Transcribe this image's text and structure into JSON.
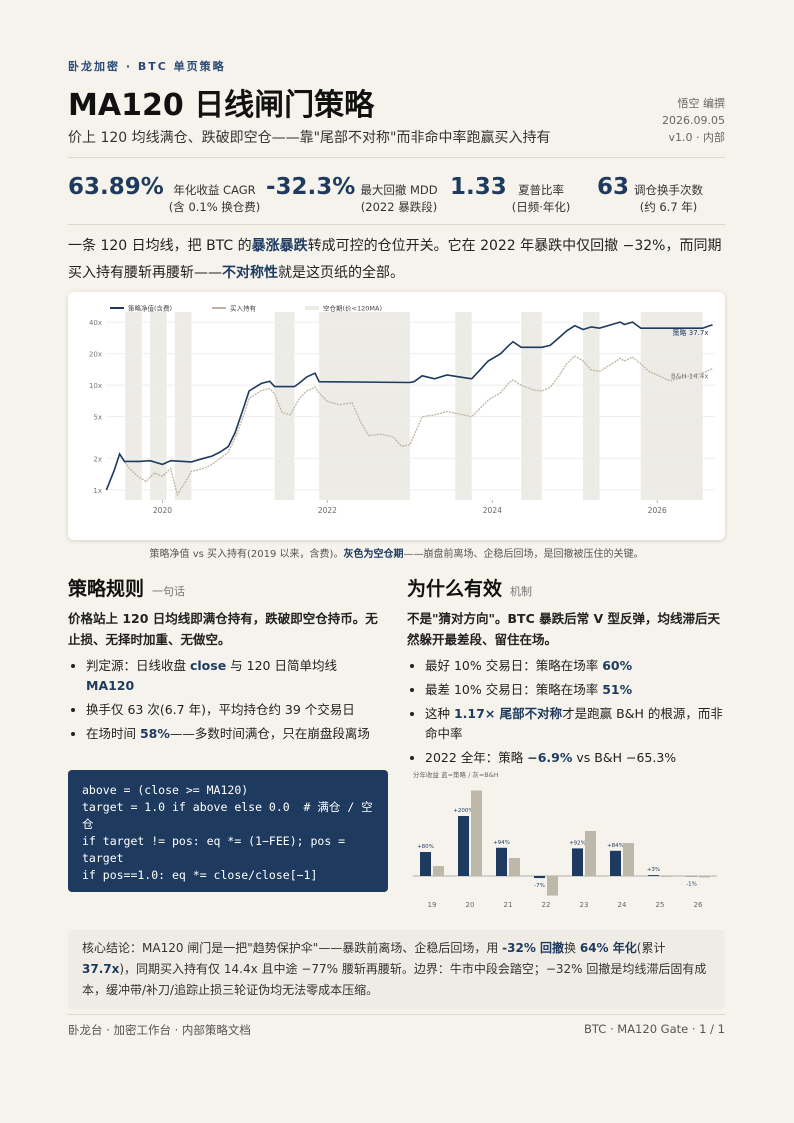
{
  "header": {
    "kicker": "卧龙加密 · BTC 单页策略",
    "title": "MA120 日线闸门策略",
    "subtitle": "价上 120 均线满仓、跌破即空仓——靠\"尾部不对称\"而非命中率跑赢买入持有",
    "author": "悟空 编撰",
    "date": "2026.09.05",
    "version": "v1.0 · 内部"
  },
  "kpis": [
    {
      "value": "63.89%",
      "label": "年化收益 CAGR",
      "note": "(含 0.1% 换仓费)"
    },
    {
      "value": "-32.3%",
      "label": "最大回撤 MDD",
      "note": "(2022 暴跌段)"
    },
    {
      "value": "1.33",
      "label": "夏普比率",
      "note": "(日频·年化)"
    },
    {
      "value": "63",
      "label": "调仓换手次数",
      "note": "(约 6.7 年)"
    }
  ],
  "intro": [
    "一条 120 日均线，把 BTC 的",
    "暴涨暴跌",
    "转成可控的仓位开关。它在 2022 年暴跌中仅回撤 −32%，而同期买入持有腰斩再腰斩——",
    "不对称性",
    "就是这页纸的全部。"
  ],
  "main_chart": {
    "type": "line",
    "log_scale": true,
    "grid": true,
    "xlim": [
      2019.0,
      2026.7
    ],
    "xticks": [
      2020,
      2022,
      2024,
      2026
    ],
    "ylim": [
      0.8,
      50
    ],
    "yticks": [
      {
        "value": 1,
        "label": "1x"
      },
      {
        "value": 2,
        "label": "2x"
      },
      {
        "value": 5,
        "label": "5x"
      },
      {
        "value": 10,
        "label": "10x"
      },
      {
        "value": 20,
        "label": "20x"
      },
      {
        "value": 40,
        "label": "40x"
      }
    ],
    "series": [
      {
        "name": "策略净值(含费)",
        "color": "#1e3a5f",
        "end_label": "策略 37.7x",
        "x": [
          2019.32,
          2019.42,
          2019.48,
          2019.54,
          2019.72,
          2019.85,
          2020.0,
          2020.1,
          2020.35,
          2020.5,
          2020.6,
          2020.7,
          2020.8,
          2020.88,
          2020.99,
          2021.05,
          2021.2,
          2021.3,
          2021.36,
          2021.6,
          2021.66,
          2021.75,
          2021.85,
          2021.9,
          2023.0,
          2023.05,
          2023.15,
          2023.3,
          2023.45,
          2023.6,
          2023.75,
          2023.85,
          2023.95,
          2024.1,
          2024.2,
          2024.25,
          2024.35,
          2024.6,
          2024.7,
          2024.8,
          2024.9,
          2025.0,
          2025.1,
          2025.2,
          2025.3,
          2025.45,
          2025.55,
          2025.6,
          2025.7,
          2025.8,
          2026.55,
          2026.67
        ],
        "values": [
          1,
          1.57,
          2.2,
          1.87,
          1.87,
          1.9,
          1.75,
          1.9,
          1.85,
          2.0,
          2.1,
          2.3,
          2.6,
          3.5,
          6.3,
          8.8,
          10.4,
          10.9,
          9.7,
          9.7,
          10.5,
          12,
          13,
          10.8,
          10.6,
          10.8,
          12.3,
          11.5,
          12.5,
          12,
          11.5,
          14,
          17,
          20,
          24,
          26,
          23,
          23,
          24,
          28,
          33,
          37,
          34,
          36,
          35,
          38,
          40,
          38,
          40,
          35,
          35,
          37.7
        ]
      },
      {
        "name": "买入持有",
        "color": "#bdb5a0",
        "end_label": "B&H 14.4x",
        "x": [
          2019.32,
          2019.42,
          2019.48,
          2019.54,
          2019.6,
          2019.7,
          2019.8,
          2019.9,
          2020.0,
          2020.1,
          2020.18,
          2020.28,
          2020.35,
          2020.5,
          2020.6,
          2020.7,
          2020.8,
          2020.88,
          2020.99,
          2021.05,
          2021.2,
          2021.3,
          2021.36,
          2021.45,
          2021.55,
          2021.66,
          2021.75,
          2021.85,
          2021.9,
          2022.0,
          2022.15,
          2022.3,
          2022.4,
          2022.5,
          2022.65,
          2022.8,
          2022.9,
          2023.0,
          2023.15,
          2023.3,
          2023.45,
          2023.6,
          2023.75,
          2023.85,
          2023.95,
          2024.1,
          2024.2,
          2024.25,
          2024.35,
          2024.5,
          2024.6,
          2024.7,
          2024.8,
          2024.9,
          2025.0,
          2025.1,
          2025.2,
          2025.3,
          2025.45,
          2025.55,
          2025.6,
          2025.7,
          2025.8,
          2025.9,
          2026.0,
          2026.15,
          2026.3,
          2026.45,
          2026.55,
          2026.67
        ],
        "values": [
          1,
          1.57,
          2.2,
          1.87,
          1.6,
          1.35,
          1.2,
          1.45,
          1.35,
          1.6,
          0.9,
          1.2,
          1.5,
          1.6,
          1.75,
          2.0,
          2.3,
          3.1,
          5.3,
          7.5,
          8.9,
          9.3,
          8.3,
          5.5,
          5.2,
          7.5,
          8.8,
          9.6,
          8.4,
          7.0,
          6.5,
          6.8,
          4.5,
          3.3,
          3.4,
          3.2,
          2.6,
          2.7,
          5.0,
          5.2,
          5.6,
          5.3,
          5.0,
          6.0,
          7.2,
          8.5,
          10.5,
          11.2,
          10,
          9,
          8.8,
          9.5,
          12,
          16,
          19,
          17,
          14,
          13.5,
          16,
          18,
          17,
          18.5,
          16,
          13.5,
          12.5,
          11,
          11.8,
          12.5,
          13,
          14.4
        ]
      }
    ],
    "cash_label": "空仓期(价<120MA)",
    "cash_periods": [
      [
        2019.55,
        2019.75
      ],
      [
        2019.85,
        2020.05
      ],
      [
        2020.15,
        2020.35
      ],
      [
        2021.36,
        2021.6
      ],
      [
        2021.9,
        2023.0
      ],
      [
        2023.55,
        2023.75
      ],
      [
        2024.35,
        2024.6
      ],
      [
        2025.1,
        2025.3
      ],
      [
        2025.8,
        2026.55
      ]
    ]
  },
  "caption": [
    "策略净值 vs 买入持有(2019 以来，含费)。",
    "灰色为空仓期",
    "——崩盘前离场、企稳后回场，是回撤被压住的关键。"
  ],
  "rules": {
    "heading": "策略规则",
    "tag": "一句话",
    "lead": "价格站上 120 日均线即满仓持有，跌破即空仓持币。无止损、无择时加重、无做空。",
    "bullets": [
      [
        "判定源：日线收盘 ",
        "close",
        " 与 120 日简单均线 ",
        "MA120"
      ],
      [
        "换手仅 63 次(6.7 年)，平均持仓约 39 个交易日"
      ],
      [
        "在场时间 ",
        "58%",
        "——多数时间满仓，只在崩盘段离场"
      ]
    ],
    "code": [
      "above = (close >= MA120)",
      "target = 1.0 if above else 0.0  # 满仓 / 空仓",
      "if target != pos: eq *= (1−FEE); pos = target",
      "if pos==1.0: eq *= close/close[−1]"
    ]
  },
  "why": {
    "heading": "为什么有效",
    "tag": "机制",
    "lead": "不是\"猜对方向\"。BTC 暴跌后常 V 型反弹，均线滞后天然躲开最差段、留住在场。",
    "bullets": [
      [
        "最好 10% 交易日：策略在场率 ",
        "60%"
      ],
      [
        "最差 10% 交易日：策略在场率 ",
        "51%"
      ],
      [
        "这种 ",
        "1.17× 尾部不对称",
        "才是跑赢 B&H 的根源，而非命中率"
      ],
      [
        "2022 全年：策略 ",
        "−6.9%",
        " vs B&H −65.3%"
      ]
    ]
  },
  "annual_chart": {
    "type": "bar",
    "title": "分年收益 蓝=策略 / 灰=B&H",
    "categories": [
      "19",
      "20",
      "21",
      "22",
      "23",
      "24",
      "25",
      "26"
    ],
    "ylim": [
      -100,
      300
    ],
    "series": [
      {
        "name": "策略",
        "color": "#1e3a5f",
        "values": [
          80,
          200,
          94,
          -6.9,
          92,
          84,
          3,
          -1
        ],
        "value_labels": [
          "+80%",
          "+200%",
          "+94%",
          "-7%",
          "+92%",
          "+84%",
          "+3%",
          "-1%"
        ]
      },
      {
        "name": "B&H",
        "color": "#bdb8aa",
        "values": [
          33,
          285,
          60,
          -65.3,
          150,
          110,
          -3,
          -5
        ]
      }
    ]
  },
  "conclusion": [
    "核心结论：MA120 闸门是一把\"趋势保护伞\"——暴跌前离场、企稳后回场，用 ",
    "-32% 回撤",
    "换 ",
    "64% 年化",
    "(累计 ",
    "37.7x",
    ")，同期买入持有仅 14.4x 且中途 −77% 腰斩再腰斩。边界：牛市中段会踏空；−32% 回撤是均线滞后固有成本，缓冲带/补刀/追踪止损三轮证伪均无法零成本压缩。"
  ],
  "footer": {
    "left": "卧龙台 · 加密工作台 · 内部策略文档",
    "right": "BTC · MA120 Gate · 1 / 1"
  }
}
